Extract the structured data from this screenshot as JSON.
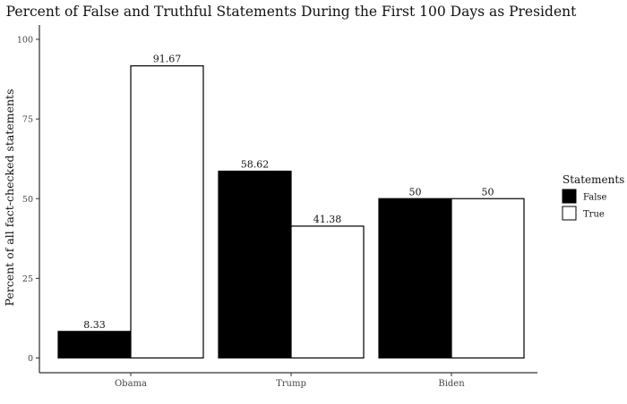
{
  "chart_data": {
    "type": "bar",
    "title": "Percent of False and Truthful Statements During the First 100 Days as President",
    "xlabel": "",
    "ylabel": "Percent of all fact-checked statements",
    "categories": [
      "Obama",
      "Trump",
      "Biden"
    ],
    "series": [
      {
        "name": "False",
        "values": [
          8.33,
          58.62,
          50
        ],
        "labels": [
          "8.33",
          "58.62",
          "50"
        ],
        "color": "#000000"
      },
      {
        "name": "True",
        "values": [
          91.67,
          41.38,
          50
        ],
        "labels": [
          "91.67",
          "41.38",
          "50"
        ],
        "color": "#ffffff"
      }
    ],
    "ylim": [
      0,
      100
    ],
    "yticks": [
      "0",
      "25",
      "50",
      "75",
      "100"
    ],
    "grid": false,
    "legend": {
      "title": "Statements",
      "placement": "right"
    },
    "bar_stroke": "#000000"
  }
}
